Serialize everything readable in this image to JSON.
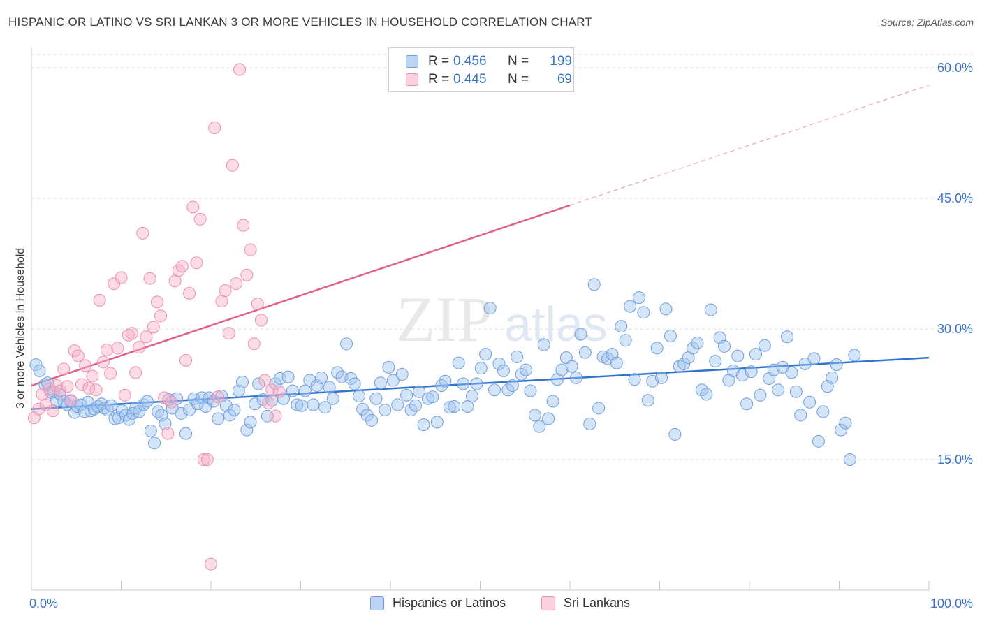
{
  "title": "HISPANIC OR LATINO VS SRI LANKAN 3 OR MORE VEHICLES IN HOUSEHOLD CORRELATION CHART",
  "source": "Source: ZipAtlas.com",
  "watermark": {
    "zip": "ZIP",
    "atlas": "atlas"
  },
  "stats": {
    "blue": {
      "r_label": "R =",
      "r_value": "0.456",
      "n_label": "N =",
      "n_value": "199"
    },
    "pink": {
      "r_label": "R =",
      "r_value": "0.445",
      "n_label": "N =",
      "n_value": "69"
    }
  },
  "legend": {
    "blue": "Hispanics or Latinos",
    "pink": "Sri Lankans"
  },
  "chart_data": {
    "type": "scatter",
    "title": "HISPANIC OR LATINO VS SRI LANKAN 3 OR MORE VEHICLES IN HOUSEHOLD CORRELATION CHART",
    "xlabel": "",
    "ylabel": "3 or more Vehicles in Household",
    "xlim": [
      0,
      100
    ],
    "ylim": [
      0,
      60
    ],
    "x_tick_labels": [
      "0.0%",
      "100.0%"
    ],
    "y_ticks": [
      15,
      30,
      45,
      60
    ],
    "y_tick_labels": [
      "15.0%",
      "30.0%",
      "45.0%",
      "60.0%"
    ],
    "colors": {
      "blue": "#8ab4ea",
      "blue_line": "#2f74d0",
      "pink": "#f4a8c0",
      "pink_line": "#e0608c",
      "tick_text": "#3a72c8"
    },
    "series": [
      {
        "name": "Hispanics or Latinos",
        "color": "blue",
        "trend": {
          "x0": 0,
          "y0": 20.8,
          "x1": 100,
          "y1": 26.7,
          "dashed_to": 100
        },
        "points": [
          [
            0.5,
            25.9
          ],
          [
            0.9,
            25.2
          ],
          [
            1.5,
            23.6
          ],
          [
            1.8,
            23.8
          ],
          [
            2.2,
            22.7
          ],
          [
            2.5,
            22.8
          ],
          [
            2.8,
            21.8
          ],
          [
            3.2,
            22.5
          ],
          [
            3.6,
            21.7
          ],
          [
            4.0,
            21.3
          ],
          [
            4.4,
            21.7
          ],
          [
            4.8,
            20.4
          ],
          [
            5.1,
            21.1
          ],
          [
            5.5,
            21.3
          ],
          [
            5.9,
            20.5
          ],
          [
            6.3,
            21.6
          ],
          [
            6.6,
            20.6
          ],
          [
            7.0,
            20.8
          ],
          [
            7.4,
            21.1
          ],
          [
            7.8,
            21.4
          ],
          [
            8.1,
            20.9
          ],
          [
            8.5,
            20.7
          ],
          [
            8.9,
            21.2
          ],
          [
            9.3,
            19.7
          ],
          [
            9.7,
            19.8
          ],
          [
            10.1,
            20.6
          ],
          [
            10.5,
            20.1
          ],
          [
            10.9,
            19.6
          ],
          [
            11.3,
            20.3
          ],
          [
            11.6,
            20.9
          ],
          [
            12.0,
            20.5
          ],
          [
            12.5,
            21.3
          ],
          [
            12.9,
            21.7
          ],
          [
            13.3,
            18.3
          ],
          [
            13.7,
            16.9
          ],
          [
            14.1,
            20.5
          ],
          [
            14.5,
            20.1
          ],
          [
            14.9,
            19.1
          ],
          [
            15.3,
            21.9
          ],
          [
            15.7,
            20.9
          ],
          [
            16.2,
            22.0
          ],
          [
            16.7,
            20.3
          ],
          [
            17.2,
            18.0
          ],
          [
            17.6,
            20.7
          ],
          [
            18.1,
            22.0
          ],
          [
            18.5,
            21.4
          ],
          [
            19.0,
            22.1
          ],
          [
            19.4,
            21.1
          ],
          [
            19.8,
            22.1
          ],
          [
            20.3,
            21.7
          ],
          [
            20.8,
            19.7
          ],
          [
            21.2,
            22.3
          ],
          [
            21.7,
            21.2
          ],
          [
            22.1,
            20.1
          ],
          [
            22.6,
            20.7
          ],
          [
            23.1,
            22.9
          ],
          [
            23.5,
            23.9
          ],
          [
            24.0,
            18.4
          ],
          [
            24.4,
            19.3
          ],
          [
            24.9,
            21.4
          ],
          [
            25.3,
            23.7
          ],
          [
            25.8,
            21.9
          ],
          [
            26.3,
            20.0
          ],
          [
            26.8,
            21.8
          ],
          [
            27.2,
            23.7
          ],
          [
            27.7,
            24.3
          ],
          [
            28.1,
            22.0
          ],
          [
            28.6,
            24.5
          ],
          [
            29.1,
            22.9
          ],
          [
            29.6,
            21.3
          ],
          [
            30.1,
            21.2
          ],
          [
            30.5,
            22.9
          ],
          [
            31.0,
            24.1
          ],
          [
            31.4,
            21.3
          ],
          [
            31.8,
            23.5
          ],
          [
            32.3,
            24.4
          ],
          [
            32.7,
            21.0
          ],
          [
            33.2,
            23.3
          ],
          [
            33.6,
            22.0
          ],
          [
            34.1,
            25.0
          ],
          [
            34.6,
            24.5
          ],
          [
            35.1,
            28.3
          ],
          [
            35.6,
            24.3
          ],
          [
            36.0,
            23.7
          ],
          [
            36.5,
            22.3
          ],
          [
            36.9,
            20.8
          ],
          [
            37.4,
            20.1
          ],
          [
            37.9,
            19.5
          ],
          [
            38.4,
            22.0
          ],
          [
            38.9,
            23.8
          ],
          [
            39.4,
            20.7
          ],
          [
            39.8,
            25.6
          ],
          [
            40.3,
            24.1
          ],
          [
            40.8,
            21.3
          ],
          [
            41.3,
            24.8
          ],
          [
            41.8,
            22.4
          ],
          [
            42.3,
            20.7
          ],
          [
            42.8,
            21.2
          ],
          [
            43.2,
            22.8
          ],
          [
            43.7,
            19.0
          ],
          [
            44.2,
            22.0
          ],
          [
            44.7,
            22.2
          ],
          [
            45.2,
            19.3
          ],
          [
            45.7,
            23.5
          ],
          [
            46.1,
            24.0
          ],
          [
            46.6,
            21.0
          ],
          [
            47.1,
            21.1
          ],
          [
            47.6,
            26.1
          ],
          [
            48.1,
            23.7
          ],
          [
            48.6,
            21.1
          ],
          [
            49.1,
            22.3
          ],
          [
            49.6,
            23.7
          ],
          [
            50.1,
            25.5
          ],
          [
            50.6,
            27.1
          ],
          [
            51.1,
            32.4
          ],
          [
            51.6,
            23.0
          ],
          [
            52.1,
            26.0
          ],
          [
            52.6,
            25.2
          ],
          [
            53.1,
            23.0
          ],
          [
            53.6,
            23.5
          ],
          [
            54.1,
            26.8
          ],
          [
            54.6,
            24.8
          ],
          [
            55.1,
            25.3
          ],
          [
            55.6,
            22.9
          ],
          [
            56.1,
            20.1
          ],
          [
            56.6,
            18.8
          ],
          [
            57.1,
            28.2
          ],
          [
            57.6,
            19.7
          ],
          [
            58.1,
            21.7
          ],
          [
            58.6,
            24.2
          ],
          [
            59.1,
            25.3
          ],
          [
            59.6,
            26.7
          ],
          [
            60.2,
            25.7
          ],
          [
            60.7,
            24.4
          ],
          [
            61.2,
            29.4
          ],
          [
            61.7,
            27.3
          ],
          [
            62.2,
            19.1
          ],
          [
            62.7,
            35.1
          ],
          [
            63.2,
            20.9
          ],
          [
            63.7,
            26.8
          ],
          [
            64.2,
            26.6
          ],
          [
            64.7,
            27.1
          ],
          [
            65.2,
            26.1
          ],
          [
            65.7,
            30.3
          ],
          [
            66.2,
            28.7
          ],
          [
            66.7,
            32.6
          ],
          [
            67.2,
            24.2
          ],
          [
            67.7,
            33.6
          ],
          [
            68.2,
            31.9
          ],
          [
            68.7,
            21.8
          ],
          [
            69.2,
            24.0
          ],
          [
            69.7,
            27.8
          ],
          [
            70.2,
            24.4
          ],
          [
            70.7,
            32.3
          ],
          [
            71.2,
            29.2
          ],
          [
            71.7,
            17.9
          ],
          [
            72.2,
            25.7
          ],
          [
            72.7,
            26.0
          ],
          [
            73.2,
            26.7
          ],
          [
            73.7,
            27.8
          ],
          [
            74.2,
            28.4
          ],
          [
            74.7,
            23.0
          ],
          [
            75.2,
            22.5
          ],
          [
            75.7,
            32.2
          ],
          [
            76.2,
            26.3
          ],
          [
            76.7,
            29.0
          ],
          [
            77.2,
            28.0
          ],
          [
            77.7,
            24.1
          ],
          [
            78.2,
            25.2
          ],
          [
            78.7,
            26.9
          ],
          [
            79.2,
            24.7
          ],
          [
            79.7,
            21.4
          ],
          [
            80.2,
            25.1
          ],
          [
            80.7,
            27.1
          ],
          [
            81.2,
            22.4
          ],
          [
            81.7,
            28.1
          ],
          [
            82.2,
            24.3
          ],
          [
            82.7,
            25.3
          ],
          [
            83.2,
            23.0
          ],
          [
            83.7,
            25.6
          ],
          [
            84.2,
            29.1
          ],
          [
            84.7,
            25.0
          ],
          [
            85.2,
            22.8
          ],
          [
            85.7,
            20.1
          ],
          [
            86.2,
            26.0
          ],
          [
            86.7,
            21.6
          ],
          [
            87.2,
            26.6
          ],
          [
            87.7,
            17.1
          ],
          [
            88.2,
            20.5
          ],
          [
            88.7,
            23.4
          ],
          [
            89.2,
            24.4
          ],
          [
            89.7,
            25.9
          ],
          [
            90.2,
            18.4
          ],
          [
            90.7,
            19.2
          ],
          [
            91.2,
            15.0
          ],
          [
            91.7,
            27.0
          ]
        ]
      },
      {
        "name": "Sri Lankans",
        "color": "pink",
        "trend": {
          "x0": 0,
          "y0": 23.5,
          "x1": 60,
          "y1": 44.2,
          "dashed_to": 100
        },
        "points": [
          [
            0.3,
            19.8
          ],
          [
            0.8,
            20.8
          ],
          [
            1.2,
            22.5
          ],
          [
            1.6,
            21.3
          ],
          [
            2.0,
            23.1
          ],
          [
            2.4,
            20.6
          ],
          [
            2.8,
            23.5
          ],
          [
            3.2,
            22.9
          ],
          [
            3.6,
            25.4
          ],
          [
            4.0,
            23.4
          ],
          [
            4.4,
            21.8
          ],
          [
            4.8,
            27.5
          ],
          [
            5.2,
            26.9
          ],
          [
            5.6,
            23.6
          ],
          [
            6.0,
            25.8
          ],
          [
            6.4,
            23.2
          ],
          [
            6.8,
            24.6
          ],
          [
            7.2,
            23.0
          ],
          [
            7.6,
            33.3
          ],
          [
            8.0,
            26.2
          ],
          [
            8.4,
            27.6
          ],
          [
            8.8,
            24.9
          ],
          [
            9.2,
            35.2
          ],
          [
            9.6,
            27.8
          ],
          [
            10.0,
            35.9
          ],
          [
            10.4,
            22.4
          ],
          [
            10.8,
            29.3
          ],
          [
            11.2,
            29.5
          ],
          [
            11.6,
            25.0
          ],
          [
            12.0,
            27.9
          ],
          [
            12.4,
            41.0
          ],
          [
            12.8,
            29.1
          ],
          [
            13.2,
            35.8
          ],
          [
            13.6,
            30.2
          ],
          [
            14.0,
            33.1
          ],
          [
            14.4,
            31.5
          ],
          [
            14.8,
            22.1
          ],
          [
            15.2,
            18.0
          ],
          [
            15.6,
            21.6
          ],
          [
            16.0,
            35.5
          ],
          [
            16.4,
            36.7
          ],
          [
            16.8,
            37.2
          ],
          [
            17.2,
            26.4
          ],
          [
            17.6,
            34.1
          ],
          [
            18.0,
            44.0
          ],
          [
            18.4,
            37.6
          ],
          [
            18.8,
            42.6
          ],
          [
            19.2,
            15.0
          ],
          [
            19.6,
            15.0
          ],
          [
            20.0,
            3.0
          ],
          [
            20.4,
            53.1
          ],
          [
            20.8,
            22.2
          ],
          [
            21.2,
            33.2
          ],
          [
            21.6,
            34.4
          ],
          [
            22.0,
            29.5
          ],
          [
            22.4,
            48.8
          ],
          [
            22.8,
            35.2
          ],
          [
            23.2,
            59.8
          ],
          [
            23.6,
            41.9
          ],
          [
            24.0,
            36.2
          ],
          [
            24.4,
            39.1
          ],
          [
            24.8,
            28.3
          ],
          [
            25.2,
            32.9
          ],
          [
            25.6,
            31.0
          ],
          [
            26.0,
            24.1
          ],
          [
            26.4,
            21.5
          ],
          [
            26.8,
            23.0
          ],
          [
            27.2,
            20.0
          ],
          [
            27.6,
            22.8
          ]
        ]
      }
    ]
  }
}
